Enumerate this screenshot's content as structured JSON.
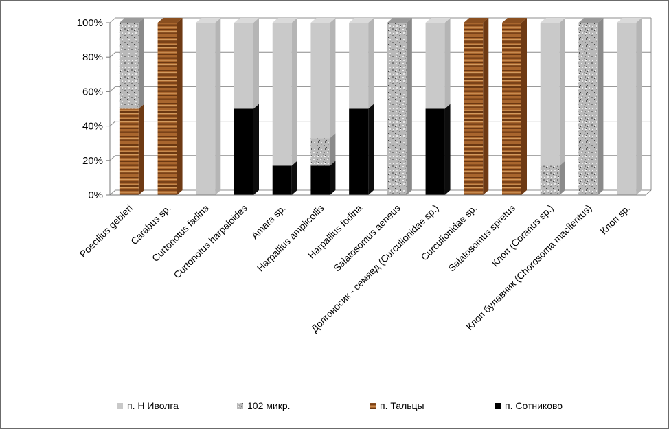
{
  "chart_data": {
    "type": "bar",
    "stacked": "percent",
    "categories": [
      "Poecilius gebleri",
      "Carabus sp.",
      "Curtonotus fadina",
      "Curtonotus harpaloides",
      "Amara sp.",
      "Harpallius amplicollis",
      "Harpallius fodina",
      "Salatosomus aeneus",
      "Долгоносик - семяед (Curculionidae sp.)",
      "Curculionidae sp.",
      "Salatosomus spretus",
      "Клоп (Coranus sp.)",
      "Клоп булавник (Chorosoma macilentus)",
      "Клоп sp."
    ],
    "series": [
      {
        "name": "п. Сотниково",
        "color": "#000000",
        "values": [
          0,
          0,
          0,
          50,
          17,
          17,
          50,
          0,
          50,
          0,
          0,
          0,
          0,
          0
        ]
      },
      {
        "name": "п. Тальцы",
        "color": "#9a5a28",
        "values": [
          50,
          100,
          0,
          0,
          0,
          0,
          0,
          0,
          0,
          100,
          100,
          0,
          0,
          0
        ]
      },
      {
        "name": "102 микр.",
        "color": "#a9a9a9",
        "values": [
          50,
          0,
          0,
          0,
          0,
          16,
          0,
          100,
          0,
          0,
          0,
          17,
          100,
          0
        ]
      },
      {
        "name": "п. Н Иволга",
        "color": "#c9c9c9",
        "values": [
          0,
          0,
          100,
          50,
          83,
          67,
          50,
          0,
          50,
          0,
          0,
          83,
          0,
          100
        ]
      }
    ],
    "legend_order": [
      "п. Н Иволга",
      "102 микр.",
      "п. Тальцы",
      "п. Сотниково"
    ],
    "yticks": [
      "0%",
      "20%",
      "40%",
      "60%",
      "80%",
      "100%"
    ],
    "ylim": [
      0,
      100
    ],
    "grid": true,
    "legend_position": "bottom",
    "title": "",
    "xlabel": "",
    "ylabel": ""
  }
}
